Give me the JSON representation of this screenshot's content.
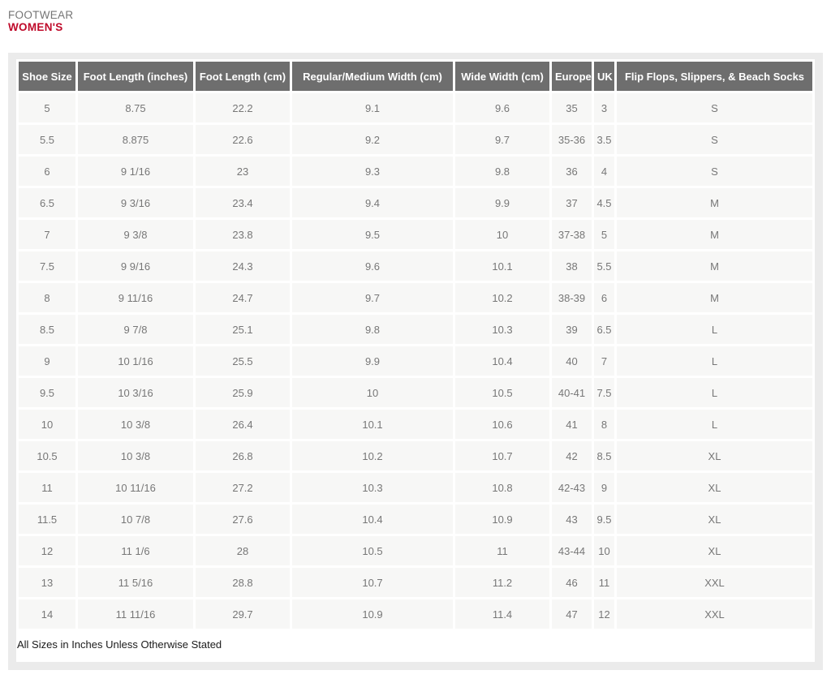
{
  "header": {
    "category": "FOOTWEAR",
    "title": "WOMEN'S"
  },
  "footer": {
    "note": "All Sizes in Inches Unless Otherwise Stated"
  },
  "colors": {
    "title_red": "#bf0a2a",
    "category_gray": "#757575",
    "table_header_bg": "#6e6e6e",
    "table_header_text": "#ffffff",
    "cell_bg": "#f7f7f6",
    "cell_text": "#777777",
    "panel_bg": "#ebebeb"
  },
  "chart_data": {
    "type": "table",
    "title": "Women's Footwear Size Chart",
    "columns": [
      "Shoe Size",
      "Foot Length (inches)",
      "Foot Length (cm)",
      "Regular/Medium Width (cm)",
      "Wide Width (cm)",
      "Europe",
      "UK",
      "Flip Flops, Slippers, & Beach Socks"
    ],
    "rows": [
      [
        "5",
        "8.75",
        "22.2",
        "9.1",
        "9.6",
        "35",
        "3",
        "S"
      ],
      [
        "5.5",
        "8.875",
        "22.6",
        "9.2",
        "9.7",
        "35-36",
        "3.5",
        "S"
      ],
      [
        "6",
        "9 1/16",
        "23",
        "9.3",
        "9.8",
        "36",
        "4",
        "S"
      ],
      [
        "6.5",
        "9 3/16",
        "23.4",
        "9.4",
        "9.9",
        "37",
        "4.5",
        "M"
      ],
      [
        "7",
        "9 3/8",
        "23.8",
        "9.5",
        "10",
        "37-38",
        "5",
        "M"
      ],
      [
        "7.5",
        "9 9/16",
        "24.3",
        "9.6",
        "10.1",
        "38",
        "5.5",
        "M"
      ],
      [
        "8",
        "9 11/16",
        "24.7",
        "9.7",
        "10.2",
        "38-39",
        "6",
        "M"
      ],
      [
        "8.5",
        "9 7/8",
        "25.1",
        "9.8",
        "10.3",
        "39",
        "6.5",
        "L"
      ],
      [
        "9",
        "10 1/16",
        "25.5",
        "9.9",
        "10.4",
        "40",
        "7",
        "L"
      ],
      [
        "9.5",
        "10 3/16",
        "25.9",
        "10",
        "10.5",
        "40-41",
        "7.5",
        "L"
      ],
      [
        "10",
        "10 3/8",
        "26.4",
        "10.1",
        "10.6",
        "41",
        "8",
        "L"
      ],
      [
        "10.5",
        "10 3/8",
        "26.8",
        "10.2",
        "10.7",
        "42",
        "8.5",
        "XL"
      ],
      [
        "11",
        "10 11/16",
        "27.2",
        "10.3",
        "10.8",
        "42-43",
        "9",
        "XL"
      ],
      [
        "11.5",
        "10 7/8",
        "27.6",
        "10.4",
        "10.9",
        "43",
        "9.5",
        "XL"
      ],
      [
        "12",
        "11 1/6",
        "28",
        "10.5",
        "11",
        "43-44",
        "10",
        "XL"
      ],
      [
        "13",
        "11 5/16",
        "28.8",
        "10.7",
        "11.2",
        "46",
        "11",
        "XXL"
      ],
      [
        "14",
        "11 11/16",
        "29.7",
        "10.9",
        "11.4",
        "47",
        "12",
        "XXL"
      ]
    ]
  }
}
